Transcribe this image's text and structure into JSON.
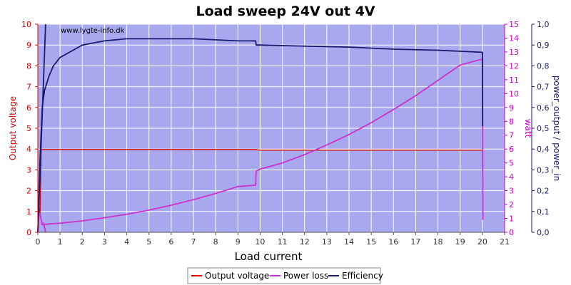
{
  "chart_data": {
    "type": "line",
    "title": "Load sweep 24V out 4V",
    "watermark": "www.lygte-info.dk",
    "xlabel": "Load current",
    "ylabel_left": "Output voltage",
    "ylabel_right1": "watt",
    "ylabel_right2": "power_output / power_in",
    "xlim": [
      0,
      21
    ],
    "ylim_left": [
      0,
      10
    ],
    "ylim_right1": [
      0,
      15
    ],
    "ylim_right2": [
      0,
      1.0
    ],
    "x_ticks": [
      "0",
      "1",
      "2",
      "3",
      "4",
      "5",
      "6",
      "7",
      "8",
      "9",
      "10",
      "11",
      "12",
      "13",
      "14",
      "15",
      "16",
      "17",
      "18",
      "19",
      "20",
      "21"
    ],
    "y_left_ticks": [
      "0",
      "1",
      "2",
      "3",
      "4",
      "5",
      "6",
      "7",
      "8",
      "9",
      "10"
    ],
    "y_right1_ticks": [
      "0",
      "1",
      "2",
      "3",
      "4",
      "5",
      "6",
      "7",
      "8",
      "9",
      "10",
      "11",
      "12",
      "13",
      "14",
      "15"
    ],
    "y_right2_ticks": [
      "0,0",
      "0,1",
      "0,2",
      "0,3",
      "0,4",
      "0,5",
      "0,6",
      "0,7",
      "0,8",
      "0,9",
      "1,0"
    ],
    "grid": true,
    "legend_position": "bottom",
    "colors": {
      "plot_bg": "#a8a8ee",
      "grid": "#ffffff",
      "output_voltage": "#dd0000",
      "power_loss": "#cc33cc",
      "efficiency": "#1a1a6e",
      "left_axis": "#dd0000",
      "right1_axis": "#cc00cc",
      "right2_axis": "#1a1a6e"
    },
    "series": [
      {
        "name": "Output voltage",
        "axis": "left",
        "x": [
          0.0,
          0.05,
          0.1,
          0.15,
          0.2,
          0.3,
          1,
          5,
          9.8,
          10,
          15,
          19.9,
          20.0,
          20.02
        ],
        "y": [
          0.0,
          1.2,
          0.9,
          3.98,
          3.98,
          3.98,
          3.98,
          3.98,
          3.98,
          3.95,
          3.95,
          3.95,
          3.95,
          0.6
        ]
      },
      {
        "name": "Power loss",
        "axis": "right1",
        "x": [
          0.0,
          0.05,
          0.1,
          0.2,
          0.3,
          0.5,
          1,
          2,
          3,
          4,
          5,
          6,
          7,
          8,
          9,
          9.8,
          9.82,
          10,
          11,
          12,
          13,
          14,
          15,
          16,
          17,
          18,
          19,
          19.9,
          20.0,
          20.02
        ],
        "y": [
          0.0,
          1.4,
          1.3,
          0.55,
          0.55,
          0.6,
          0.65,
          0.82,
          1.05,
          1.3,
          1.6,
          1.95,
          2.35,
          2.8,
          3.3,
          3.4,
          4.4,
          4.55,
          5.0,
          5.6,
          6.3,
          7.05,
          7.9,
          8.85,
          9.85,
          10.95,
          12.05,
          12.45,
          12.45,
          0.9
        ]
      },
      {
        "name": "Efficiency",
        "axis": "right2",
        "x": [
          0.0,
          0.1,
          0.2,
          0.3,
          0.5,
          0.7,
          1,
          1.5,
          2,
          3,
          4,
          5,
          6,
          7,
          8,
          9,
          9.8,
          9.82,
          10,
          12,
          14,
          16,
          18,
          20.0,
          20.01
        ],
        "y": [
          0.0,
          0.35,
          0.6,
          0.68,
          0.75,
          0.8,
          0.84,
          0.87,
          0.9,
          0.92,
          0.93,
          0.93,
          0.93,
          0.93,
          0.925,
          0.92,
          0.92,
          0.9,
          0.9,
          0.895,
          0.89,
          0.88,
          0.875,
          0.865,
          0.51
        ]
      },
      {
        "name": "",
        "axis": "right2",
        "x": [
          0.0,
          0.35
        ],
        "y": [
          0.0,
          1.0
        ]
      },
      {
        "name": "",
        "axis": "right1",
        "x": [
          0.25,
          0.35
        ],
        "y": [
          0.7,
          0.0
        ]
      }
    ],
    "legend": [
      "Output voltage",
      "Power loss",
      "Efficiency"
    ]
  }
}
